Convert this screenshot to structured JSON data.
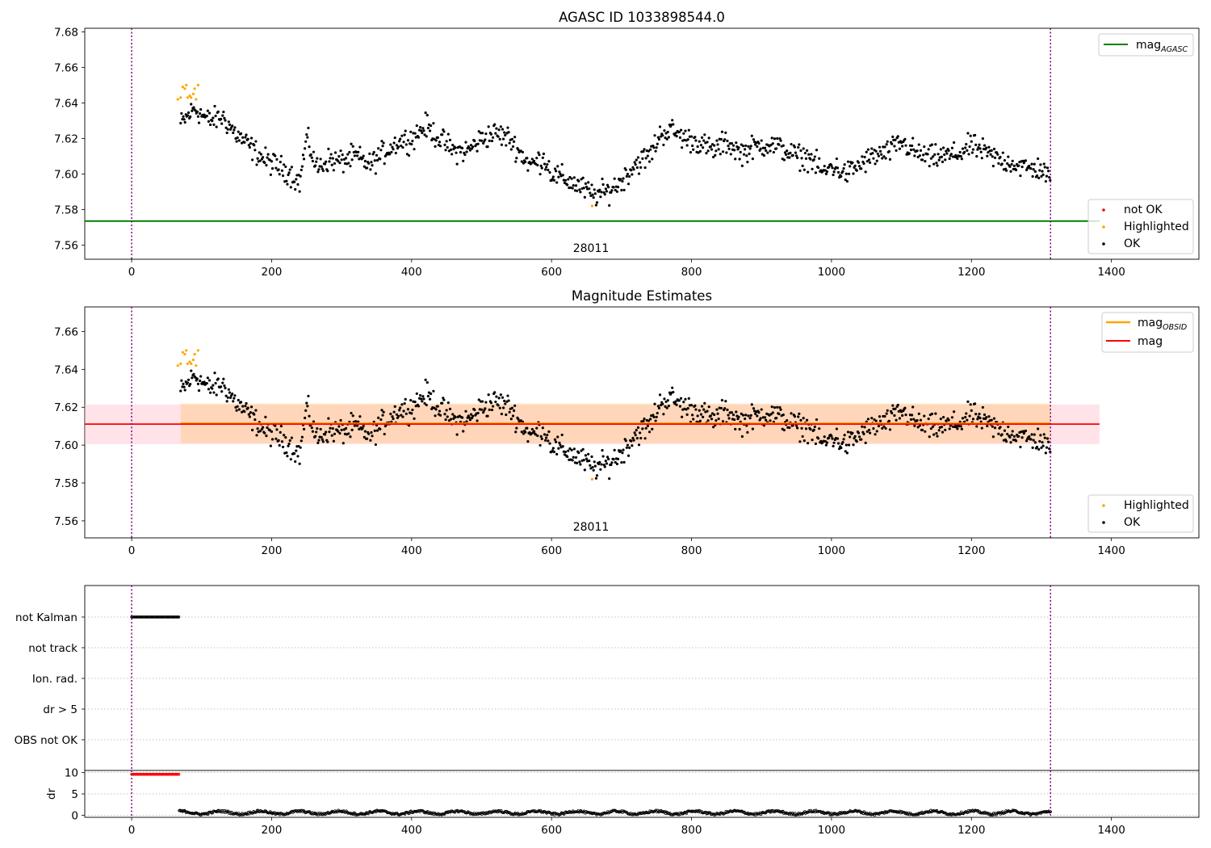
{
  "chart_data": [
    {
      "type": "scatter",
      "title": "AGASC ID 1033898544.0",
      "annotation": "28011",
      "xlim": [
        -67,
        1525
      ],
      "ylim": [
        7.552,
        7.682
      ],
      "xticks": [
        "0",
        "200",
        "400",
        "600",
        "800",
        "1000",
        "1200",
        "1400"
      ],
      "xtick_values": [
        0,
        200,
        400,
        600,
        800,
        1000,
        1200,
        1400
      ],
      "yticks": [
        "7.56",
        "7.58",
        "7.60",
        "7.62",
        "7.64",
        "7.66",
        "7.68"
      ],
      "ytick_values": [
        7.56,
        7.58,
        7.6,
        7.62,
        7.64,
        7.66,
        7.68
      ],
      "vlines": [
        0,
        1313
      ],
      "hline": {
        "y": 7.5735,
        "xmin": -67,
        "xmax": 1383,
        "color": "#008000"
      },
      "legend_top": {
        "label_main": "mag",
        "label_sub": "AGASC",
        "color": "#008000",
        "position": "top-right"
      },
      "legend_bottom": {
        "position": "bottom-right",
        "entries": [
          {
            "label": "not OK",
            "color": "#ff0000"
          },
          {
            "label": "Highlighted",
            "color": "#ffa500"
          },
          {
            "label": "OK",
            "color": "#000000"
          }
        ]
      },
      "series": [
        {
          "name": "OK",
          "color": "#000000",
          "x_range": [
            70,
            1313
          ]
        },
        {
          "name": "Highlighted",
          "color": "#ffa500",
          "x": [
            66,
            70,
            73,
            76,
            78,
            80,
            83,
            85,
            88,
            90,
            92,
            95,
            658
          ],
          "y": [
            7.642,
            7.643,
            7.649,
            7.648,
            7.65,
            7.643,
            7.644,
            7.643,
            7.645,
            7.648,
            7.642,
            7.65,
            7.582
          ]
        }
      ],
      "trend": [
        [
          70,
          7.628
        ],
        [
          90,
          7.637
        ],
        [
          110,
          7.63
        ],
        [
          130,
          7.632
        ],
        [
          150,
          7.622
        ],
        [
          170,
          7.615
        ],
        [
          190,
          7.608
        ],
        [
          210,
          7.604
        ],
        [
          225,
          7.601
        ],
        [
          240,
          7.595
        ],
        [
          250,
          7.62
        ],
        [
          265,
          7.603
        ],
        [
          280,
          7.608
        ],
        [
          300,
          7.607
        ],
        [
          320,
          7.61
        ],
        [
          340,
          7.605
        ],
        [
          360,
          7.612
        ],
        [
          380,
          7.618
        ],
        [
          400,
          7.62
        ],
        [
          420,
          7.627
        ],
        [
          440,
          7.62
        ],
        [
          460,
          7.613
        ],
        [
          480,
          7.613
        ],
        [
          500,
          7.62
        ],
        [
          520,
          7.623
        ],
        [
          540,
          7.62
        ],
        [
          555,
          7.612
        ],
        [
          570,
          7.605
        ],
        [
          590,
          7.609
        ],
        [
          600,
          7.6
        ],
        [
          620,
          7.597
        ],
        [
          640,
          7.593
        ],
        [
          660,
          7.588
        ],
        [
          680,
          7.59
        ],
        [
          700,
          7.596
        ],
        [
          720,
          7.606
        ],
        [
          740,
          7.61
        ],
        [
          755,
          7.622
        ],
        [
          770,
          7.625
        ],
        [
          790,
          7.62
        ],
        [
          810,
          7.618
        ],
        [
          830,
          7.613
        ],
        [
          850,
          7.618
        ],
        [
          870,
          7.612
        ],
        [
          890,
          7.615
        ],
        [
          910,
          7.617
        ],
        [
          930,
          7.614
        ],
        [
          950,
          7.61
        ],
        [
          970,
          7.609
        ],
        [
          990,
          7.6
        ],
        [
          1000,
          7.605
        ],
        [
          1020,
          7.6
        ],
        [
          1040,
          7.605
        ],
        [
          1060,
          7.61
        ],
        [
          1080,
          7.612
        ],
        [
          1100,
          7.618
        ],
        [
          1120,
          7.612
        ],
        [
          1140,
          7.609
        ],
        [
          1160,
          7.61
        ],
        [
          1180,
          7.611
        ],
        [
          1200,
          7.616
        ],
        [
          1220,
          7.612
        ],
        [
          1240,
          7.608
        ],
        [
          1260,
          7.606
        ],
        [
          1280,
          7.603
        ],
        [
          1300,
          7.603
        ],
        [
          1313,
          7.596
        ]
      ]
    },
    {
      "type": "scatter",
      "title": "Magnitude Estimates",
      "annotation": "28011",
      "xlim": [
        -67,
        1525
      ],
      "ylim": [
        7.551,
        7.673
      ],
      "xticks": [
        "0",
        "200",
        "400",
        "600",
        "800",
        "1000",
        "1200",
        "1400"
      ],
      "xtick_values": [
        0,
        200,
        400,
        600,
        800,
        1000,
        1200,
        1400
      ],
      "yticks": [
        "7.56",
        "7.58",
        "7.60",
        "7.62",
        "7.64",
        "7.66"
      ],
      "ytick_values": [
        7.56,
        7.58,
        7.6,
        7.62,
        7.64,
        7.66
      ],
      "vlines": [
        0,
        1313
      ],
      "band_outer": {
        "y0": 7.6005,
        "y1": 7.6215,
        "xmin": -67,
        "xmax": 1383,
        "color": "#ffc0cb"
      },
      "band_inner": {
        "y0": 7.601,
        "y1": 7.622,
        "xmin": 70,
        "xmax": 1313,
        "color": "#ffa500"
      },
      "mag_line": {
        "y": 7.6111,
        "xmin": -67,
        "xmax": 1383,
        "color": "#ff0000"
      },
      "obsid_line": {
        "y": 7.6115,
        "xmin": 70,
        "xmax": 1313,
        "color": "#ffa500"
      },
      "legend_top": {
        "position": "top-right",
        "entries": [
          {
            "label_main": "mag",
            "label_sub": "OBSID",
            "color": "#ffa500"
          },
          {
            "label_main": "mag",
            "label_sub": "",
            "color": "#ff0000"
          }
        ]
      },
      "legend_bottom": {
        "position": "bottom-right",
        "entries": [
          {
            "label": "Highlighted",
            "color": "#ffa500"
          },
          {
            "label": "OK",
            "color": "#000000"
          }
        ]
      },
      "series": [
        {
          "name": "OK",
          "color": "#000000",
          "x_range": [
            70,
            1313
          ]
        },
        {
          "name": "Highlighted",
          "color": "#ffa500",
          "x": [
            66,
            70,
            73,
            76,
            78,
            80,
            83,
            85,
            88,
            90,
            92,
            95,
            658
          ],
          "y": [
            7.642,
            7.643,
            7.649,
            7.648,
            7.65,
            7.643,
            7.644,
            7.643,
            7.645,
            7.648,
            7.642,
            7.65,
            7.582
          ]
        }
      ]
    },
    {
      "type": "scatter",
      "xlim": [
        -67,
        1525
      ],
      "xticks": [
        "0",
        "200",
        "400",
        "600",
        "800",
        "1000",
        "1200",
        "1400"
      ],
      "xtick_values": [
        0,
        200,
        400,
        600,
        800,
        1000,
        1200,
        1400
      ],
      "vlines": [
        0,
        1313
      ],
      "flag_rows": [
        "not Kalman",
        "not track",
        "Ion. rad.",
        "dr > 5",
        "OBS not OK"
      ],
      "flag_spans": [
        {
          "row": "not Kalman",
          "x_range": [
            0,
            68
          ]
        }
      ],
      "dr": {
        "ylabel": "dr",
        "yticks": [
          "0",
          "5",
          "10"
        ],
        "ytick_values": [
          0,
          5,
          10
        ],
        "ylim": [
          -0.5,
          10.5
        ],
        "flag_value": 9.6,
        "flag_range": [
          0,
          68
        ],
        "flag_color": "#ff0000",
        "ok_range": [
          68,
          1313
        ],
        "typical_value": 0.6
      }
    }
  ]
}
